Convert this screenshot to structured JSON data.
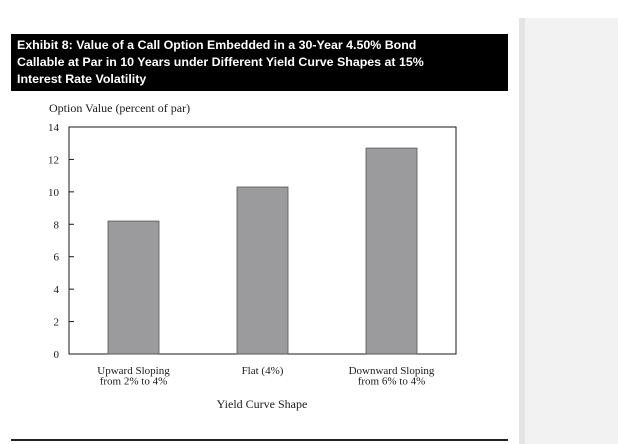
{
  "colors": {
    "bar": "#9b9b9d",
    "title_bg": "#000000",
    "title_text": "#ffffff",
    "axis": "#1a1a1a"
  },
  "chart_data": {
    "type": "bar",
    "title_lines": [
      "Exhibit 8: Value of a Call Option Embedded in a 30-Year 4.50% Bond",
      "Callable at Par in 10 Years under Different Yield Curve Shapes at 15%",
      "Interest Rate Volatility"
    ],
    "ylabel": "Option Value (percent of par)",
    "xlabel": "Yield Curve Shape",
    "categories": [
      [
        "Upward Sloping",
        "from 2% to 4%"
      ],
      [
        "Flat (4%)"
      ],
      [
        "Downward Sloping",
        "from 6% to 4%"
      ]
    ],
    "values": [
      8.2,
      10.3,
      12.7
    ],
    "ylim": [
      0,
      14
    ],
    "yticks": [
      "0",
      "2",
      "4",
      "6",
      "8",
      "10",
      "12",
      "14"
    ],
    "grid": false
  }
}
